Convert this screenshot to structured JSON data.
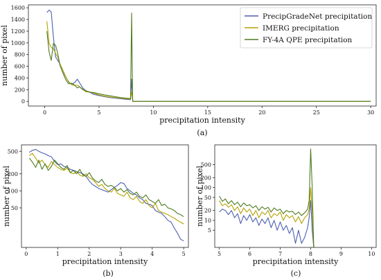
{
  "chart_data": [
    {
      "panel": "(a)",
      "type": "line",
      "caption": "(a)",
      "xlabel": "precipitation intensity",
      "ylabel": "number of pixel",
      "xlim": [
        -1.5,
        30.5
      ],
      "ylim": [
        -80,
        1650
      ],
      "yscale": "linear",
      "xticks": [
        0,
        5,
        10,
        15,
        20,
        25,
        30
      ],
      "yticks": [
        0,
        200,
        400,
        600,
        800,
        1000,
        1200,
        1400,
        1600
      ],
      "legend": {
        "position": "top-right"
      },
      "series": [
        {
          "name": "PrecipGradeNet precipitation",
          "color": "#4a5fb0",
          "x": [
            0.2,
            0.4,
            0.6,
            0.8,
            1.0,
            1.2,
            1.4,
            1.6,
            1.8,
            2.0,
            2.2,
            2.5,
            2.8,
            3.0,
            3.2,
            3.5,
            3.8,
            4.0,
            4.5,
            5.0,
            5.5,
            6.0,
            6.5,
            7.0,
            7.5,
            7.8,
            7.9,
            8.0,
            8.05,
            8.1,
            8.2,
            10,
            15,
            20,
            25,
            30
          ],
          "y": [
            1520,
            1560,
            1530,
            1100,
            760,
            700,
            640,
            560,
            470,
            400,
            330,
            290,
            330,
            380,
            320,
            230,
            180,
            170,
            120,
            100,
            80,
            65,
            55,
            45,
            35,
            30,
            28,
            380,
            200,
            0,
            0,
            0,
            0,
            0,
            0,
            0
          ]
        },
        {
          "name": "IMERG precipitation",
          "color": "#b5a100",
          "x": [
            0.2,
            0.4,
            0.6,
            0.8,
            1.0,
            1.2,
            1.4,
            1.6,
            1.8,
            2.0,
            2.2,
            2.5,
            2.8,
            3.0,
            3.2,
            3.5,
            3.8,
            4.0,
            4.5,
            5.0,
            5.5,
            6.0,
            6.5,
            7.0,
            7.5,
            7.8,
            7.9,
            8.0,
            8.05,
            8.1,
            8.2,
            10,
            15,
            20,
            25,
            30
          ],
          "y": [
            1370,
            1000,
            920,
            900,
            820,
            760,
            640,
            560,
            480,
            400,
            340,
            280,
            270,
            280,
            250,
            210,
            160,
            170,
            140,
            110,
            90,
            75,
            65,
            55,
            45,
            40,
            35,
            150,
            120,
            0,
            0,
            0,
            0,
            0,
            0,
            0
          ]
        },
        {
          "name": "FY-4A QPE precipitation",
          "color": "#4c7a1e",
          "x": [
            0.2,
            0.4,
            0.6,
            0.8,
            1.0,
            1.2,
            1.4,
            1.6,
            1.8,
            2.0,
            2.2,
            2.5,
            2.8,
            3.0,
            3.2,
            3.5,
            3.8,
            4.0,
            4.5,
            5.0,
            5.5,
            6.0,
            6.5,
            7.0,
            7.5,
            7.8,
            7.9,
            8.0,
            8.05,
            8.1,
            8.2,
            10,
            15,
            20,
            25,
            30
          ],
          "y": [
            1200,
            850,
            700,
            990,
            960,
            820,
            620,
            520,
            430,
            350,
            300,
            310,
            270,
            230,
            250,
            200,
            180,
            160,
            150,
            130,
            110,
            95,
            80,
            65,
            55,
            50,
            45,
            1510,
            600,
            0,
            0,
            0,
            0,
            0,
            0,
            0
          ]
        }
      ]
    },
    {
      "panel": "(b)",
      "type": "line",
      "caption": "(b)",
      "xlabel": "precipitation intensity",
      "ylabel": "number of pixel",
      "xlim": [
        -0.15,
        5.15
      ],
      "ylim": [
        10,
        650
      ],
      "yscale": "log",
      "xticks": [
        0,
        1,
        2,
        3,
        4,
        5
      ],
      "yticks": [
        50,
        100,
        200,
        500
      ],
      "series": [
        {
          "name": "PrecipGradeNet precipitation",
          "color": "#4a5fb0",
          "x": [
            0.1,
            0.2,
            0.3,
            0.4,
            0.5,
            0.6,
            0.7,
            0.8,
            0.9,
            1.0,
            1.1,
            1.2,
            1.3,
            1.4,
            1.5,
            1.6,
            1.7,
            1.8,
            1.9,
            2.0,
            2.1,
            2.2,
            2.3,
            2.4,
            2.5,
            2.6,
            2.7,
            2.8,
            2.9,
            3.0,
            3.1,
            3.2,
            3.3,
            3.4,
            3.5,
            3.6,
            3.7,
            3.8,
            3.9,
            4.0,
            4.1,
            4.2,
            4.3,
            4.4,
            4.5,
            4.6,
            4.7,
            4.8,
            4.9,
            5.0
          ],
          "y": [
            480,
            520,
            540,
            500,
            470,
            450,
            420,
            400,
            330,
            290,
            300,
            270,
            260,
            240,
            230,
            220,
            210,
            200,
            180,
            150,
            130,
            120,
            110,
            105,
            100,
            95,
            105,
            115,
            125,
            140,
            135,
            110,
            100,
            90,
            85,
            75,
            70,
            60,
            58,
            55,
            45,
            42,
            40,
            35,
            30,
            28,
            22,
            18,
            14,
            13
          ]
        },
        {
          "name": "IMERG precipitation",
          "color": "#b5a100",
          "x": [
            0.1,
            0.2,
            0.3,
            0.4,
            0.5,
            0.6,
            0.7,
            0.8,
            0.9,
            1.0,
            1.1,
            1.2,
            1.3,
            1.4,
            1.5,
            1.6,
            1.7,
            1.8,
            1.9,
            2.0,
            2.1,
            2.2,
            2.3,
            2.4,
            2.5,
            2.6,
            2.7,
            2.8,
            2.9,
            3.0,
            3.1,
            3.2,
            3.3,
            3.4,
            3.5,
            3.6,
            3.7,
            3.8,
            3.9,
            4.0,
            4.1,
            4.2,
            4.3,
            4.4,
            4.5,
            4.6,
            4.7,
            4.8,
            4.9,
            5.0
          ],
          "y": [
            420,
            460,
            380,
            310,
            350,
            290,
            260,
            330,
            290,
            260,
            240,
            230,
            250,
            210,
            200,
            220,
            190,
            180,
            200,
            170,
            160,
            140,
            120,
            130,
            110,
            100,
            95,
            110,
            90,
            85,
            80,
            95,
            75,
            70,
            80,
            65,
            60,
            70,
            55,
            50,
            60,
            45,
            42,
            40,
            38,
            35,
            33,
            30,
            28,
            26
          ]
        },
        {
          "name": "FY-4A QPE precipitation",
          "color": "#4c7a1e",
          "x": [
            0.1,
            0.2,
            0.3,
            0.4,
            0.5,
            0.6,
            0.7,
            0.8,
            0.9,
            1.0,
            1.1,
            1.2,
            1.3,
            1.4,
            1.5,
            1.6,
            1.7,
            1.8,
            1.9,
            2.0,
            2.1,
            2.2,
            2.3,
            2.4,
            2.5,
            2.6,
            2.7,
            2.8,
            2.9,
            3.0,
            3.1,
            3.2,
            3.3,
            3.4,
            3.5,
            3.6,
            3.7,
            3.8,
            3.9,
            4.0,
            4.1,
            4.2,
            4.3,
            4.4,
            4.5,
            4.6,
            4.7,
            4.8,
            4.9,
            5.0
          ],
          "y": [
            380,
            320,
            260,
            350,
            240,
            300,
            230,
            270,
            350,
            300,
            260,
            240,
            280,
            210,
            230,
            200,
            240,
            190,
            180,
            210,
            170,
            150,
            140,
            160,
            130,
            120,
            125,
            115,
            100,
            110,
            95,
            105,
            90,
            85,
            95,
            80,
            75,
            85,
            70,
            65,
            60,
            70,
            55,
            58,
            50,
            48,
            45,
            40,
            38,
            35
          ]
        }
      ]
    },
    {
      "panel": "(c)",
      "type": "line",
      "caption": "(c)",
      "xlabel": "precipitation intensity",
      "ylabel": "number of pixel",
      "xlim": [
        4.85,
        10.15
      ],
      "ylim": [
        1.5,
        2000
      ],
      "yscale": "log",
      "xticks": [
        5,
        6,
        7,
        8,
        9,
        10
      ],
      "yticks": [
        5,
        10,
        20,
        50,
        100,
        200,
        500
      ],
      "series": [
        {
          "name": "PrecipGradeNet precipitation",
          "color": "#4a5fb0",
          "x": [
            5.0,
            5.1,
            5.2,
            5.3,
            5.4,
            5.5,
            5.6,
            5.7,
            5.8,
            5.9,
            6.0,
            6.1,
            6.2,
            6.3,
            6.4,
            6.5,
            6.6,
            6.7,
            6.8,
            6.9,
            7.0,
            7.1,
            7.2,
            7.3,
            7.4,
            7.5,
            7.6,
            7.7,
            7.8,
            7.9,
            7.95,
            8.0,
            8.05,
            8.1
          ],
          "y": [
            18,
            22,
            20,
            15,
            20,
            12,
            16,
            8,
            14,
            10,
            15,
            9,
            12,
            7,
            11,
            8,
            12,
            6,
            10,
            5,
            9,
            5,
            7,
            4,
            6,
            2,
            5,
            2,
            3,
            6,
            12,
            40,
            5,
            1.5
          ]
        },
        {
          "name": "IMERG precipitation",
          "color": "#b5a100",
          "x": [
            5.0,
            5.1,
            5.2,
            5.3,
            5.4,
            5.5,
            5.6,
            5.7,
            5.8,
            5.9,
            6.0,
            6.1,
            6.2,
            6.3,
            6.4,
            6.5,
            6.6,
            6.7,
            6.8,
            6.9,
            7.0,
            7.1,
            7.2,
            7.3,
            7.4,
            7.5,
            7.6,
            7.7,
            7.8,
            7.9,
            7.95,
            8.0,
            8.05,
            8.1
          ],
          "y": [
            40,
            28,
            32,
            25,
            30,
            20,
            26,
            16,
            24,
            18,
            22,
            14,
            20,
            12,
            18,
            15,
            20,
            12,
            16,
            14,
            18,
            10,
            15,
            12,
            14,
            9,
            13,
            8,
            12,
            15,
            22,
            100,
            20,
            1.5
          ]
        },
        {
          "name": "FY-4A QPE precipitation",
          "color": "#4c7a1e",
          "x": [
            5.0,
            5.1,
            5.2,
            5.3,
            5.4,
            5.5,
            5.6,
            5.7,
            5.8,
            5.9,
            6.0,
            6.1,
            6.2,
            6.3,
            6.4,
            6.5,
            6.6,
            6.7,
            6.8,
            6.9,
            7.0,
            7.1,
            7.2,
            7.3,
            7.4,
            7.5,
            7.6,
            7.7,
            7.8,
            7.9,
            7.95,
            8.0,
            8.05,
            8.1
          ],
          "y": [
            55,
            38,
            45,
            32,
            40,
            30,
            36,
            26,
            34,
            28,
            30,
            24,
            28,
            20,
            26,
            22,
            25,
            18,
            24,
            20,
            22,
            16,
            20,
            18,
            19,
            15,
            18,
            14,
            17,
            22,
            40,
            1500,
            100,
            1.5
          ]
        }
      ]
    }
  ]
}
